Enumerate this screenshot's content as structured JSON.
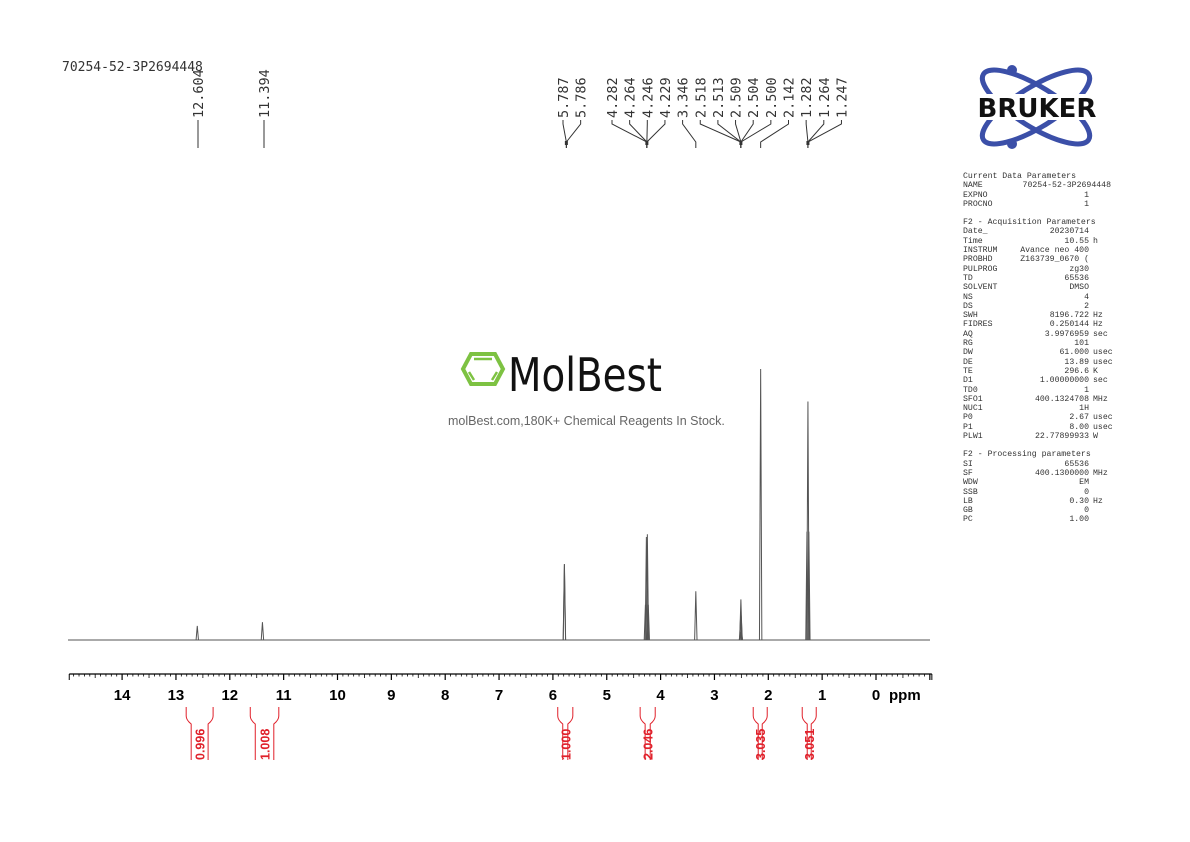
{
  "title": "70254-52-3P2694448",
  "brand": {
    "bruker_logo_text": "BRUKER",
    "molbest_logo_text": "MolBest",
    "molbest_tagline": "molBest.com,180K+ Chemical Reagents In Stock.",
    "molbest_green": "#7dc242",
    "bruker_blue": "#3b4fa8"
  },
  "parameters": {
    "sections": [
      {
        "heading": "Current Data Parameters",
        "rows": [
          [
            "NAME",
            "70254-52-3P2694448",
            ""
          ],
          [
            "EXPNO",
            "1",
            ""
          ],
          [
            "PROCNO",
            "1",
            ""
          ]
        ]
      },
      {
        "heading": "F2 - Acquisition Parameters",
        "rows": [
          [
            "Date_",
            "20230714",
            ""
          ],
          [
            "Time",
            "10.55",
            "h"
          ],
          [
            "INSTRUM",
            "Avance neo 400",
            ""
          ],
          [
            "PROBHD",
            "Z163739_0670 (",
            ""
          ],
          [
            "PULPROG",
            "zg30",
            ""
          ],
          [
            "TD",
            "65536",
            ""
          ],
          [
            "SOLVENT",
            "DMSO",
            ""
          ],
          [
            "NS",
            "4",
            ""
          ],
          [
            "DS",
            "2",
            ""
          ],
          [
            "SWH",
            "8196.722",
            "Hz"
          ],
          [
            "FIDRES",
            "0.250144",
            "Hz"
          ],
          [
            "AQ",
            "3.9976959",
            "sec"
          ],
          [
            "RG",
            "101",
            ""
          ],
          [
            "DW",
            "61.000",
            "usec"
          ],
          [
            "DE",
            "13.89",
            "usec"
          ],
          [
            "TE",
            "296.6",
            "K"
          ],
          [
            "D1",
            "1.00000000",
            "sec"
          ],
          [
            "TD0",
            "1",
            ""
          ],
          [
            "SFO1",
            "400.1324708",
            "MHz"
          ],
          [
            "NUC1",
            "1H",
            ""
          ],
          [
            "P0",
            "2.67",
            "usec"
          ],
          [
            "P1",
            "8.00",
            "usec"
          ],
          [
            "PLW1",
            "22.77899933",
            "W"
          ]
        ]
      },
      {
        "heading": "F2 - Processing parameters",
        "rows": [
          [
            "SI",
            "65536",
            ""
          ],
          [
            "SF",
            "400.1300000",
            "MHz"
          ],
          [
            "WDW",
            "EM",
            ""
          ],
          [
            "SSB",
            "0",
            ""
          ],
          [
            "LB",
            "0.30",
            "Hz"
          ],
          [
            "GB",
            "0",
            ""
          ],
          [
            "PC",
            "1.00",
            ""
          ]
        ]
      }
    ]
  },
  "chart_data": {
    "type": "line",
    "title": "70254-52-3P2694448",
    "xlabel": "ppm",
    "xlim": [
      15,
      -1
    ],
    "x_reversed": true,
    "xticks": [
      14,
      13,
      12,
      11,
      10,
      9,
      8,
      7,
      6,
      5,
      4,
      3,
      2,
      1,
      0
    ],
    "grid": false,
    "line_color": "#555555",
    "integral_color": "#e0202a",
    "peak_lines": [
      {
        "ppm": 12.604,
        "intensity": 5.2
      },
      {
        "ppm": 11.394,
        "intensity": 6.6
      },
      {
        "ppm": 5.787,
        "intensity": 28
      },
      {
        "ppm": 5.786,
        "intensity": 28
      },
      {
        "ppm": 4.282,
        "intensity": 13
      },
      {
        "ppm": 4.264,
        "intensity": 38
      },
      {
        "ppm": 4.246,
        "intensity": 39
      },
      {
        "ppm": 4.229,
        "intensity": 13
      },
      {
        "ppm": 3.346,
        "intensity": 18
      },
      {
        "ppm": 2.518,
        "intensity": 3
      },
      {
        "ppm": 2.513,
        "intensity": 9
      },
      {
        "ppm": 2.509,
        "intensity": 15
      },
      {
        "ppm": 2.504,
        "intensity": 9
      },
      {
        "ppm": 2.5,
        "intensity": 3
      },
      {
        "ppm": 2.142,
        "intensity": 100
      },
      {
        "ppm": 1.282,
        "intensity": 40
      },
      {
        "ppm": 1.264,
        "intensity": 88
      },
      {
        "ppm": 1.247,
        "intensity": 40
      }
    ],
    "peak_labels_left": [
      "12.604",
      "11.394"
    ],
    "peak_label_groups": [
      {
        "labels": [
          "5.787",
          "5.786"
        ],
        "ppm": 5.787
      },
      {
        "labels": [
          "4.282",
          "4.264",
          "4.246",
          "4.229"
        ],
        "ppm": 4.255
      },
      {
        "labels": [
          "3.346"
        ],
        "ppm": 3.346
      },
      {
        "labels": [
          "2.518",
          "2.513",
          "2.509",
          "2.504",
          "2.500"
        ],
        "ppm": 2.509
      },
      {
        "labels": [
          "2.142"
        ],
        "ppm": 2.142
      },
      {
        "labels": [
          "1.282",
          "1.264",
          "1.247"
        ],
        "ppm": 1.264
      }
    ],
    "integrals": [
      {
        "from": 12.81,
        "to": 12.31,
        "value": "0.996"
      },
      {
        "from": 11.62,
        "to": 11.09,
        "value": "1.008"
      },
      {
        "from": 5.91,
        "to": 5.63,
        "value": "1.000"
      },
      {
        "from": 4.38,
        "to": 4.1,
        "value": "2.046"
      },
      {
        "from": 2.28,
        "to": 2.02,
        "value": "3.035"
      },
      {
        "from": 1.37,
        "to": 1.11,
        "value": "3.051"
      }
    ]
  }
}
